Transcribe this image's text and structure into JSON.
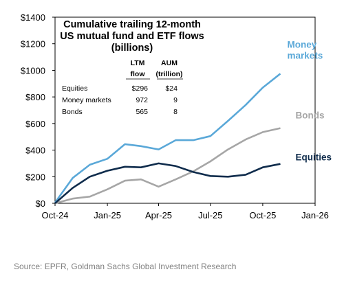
{
  "chart_data": {
    "type": "line",
    "title_lines": [
      "Cumulative trailing 12-month",
      "US  mutual fund and ETF flows",
      "(billions)"
    ],
    "x": [
      "2024-10-01",
      "2024-11-01",
      "2024-12-01",
      "2025-01-01",
      "2025-02-01",
      "2025-03-01",
      "2025-04-01",
      "2025-05-01",
      "2025-06-01",
      "2025-07-01",
      "2025-08-01",
      "2025-09-01",
      "2025-10-01",
      "2025-11-01"
    ],
    "x_ticks": [
      {
        "date": "2024-10-01",
        "label": "Oct-24"
      },
      {
        "date": "2025-01-01",
        "label": "Jan-25"
      },
      {
        "date": "2025-04-01",
        "label": "Apr-25"
      },
      {
        "date": "2025-07-01",
        "label": "Jul-25"
      },
      {
        "date": "2025-10-01",
        "label": "Oct-25"
      },
      {
        "date": "2026-01-01",
        "label": "Jan-26"
      }
    ],
    "xlim": [
      "2024-10-01",
      "2026-01-01"
    ],
    "ylim": [
      0,
      1400
    ],
    "y_ticks": [
      {
        "value": 0,
        "label": "$0"
      },
      {
        "value": 200,
        "label": "$200"
      },
      {
        "value": 400,
        "label": "$400"
      },
      {
        "value": 600,
        "label": "$600"
      },
      {
        "value": 800,
        "label": "$800"
      },
      {
        "value": 1000,
        "label": "$1000"
      },
      {
        "value": 1200,
        "label": "$1200"
      },
      {
        "value": 1400,
        "label": "$1400"
      }
    ],
    "grid": false,
    "series": [
      {
        "name": "Money markets",
        "label_lines": [
          "Money",
          "markets"
        ],
        "color": "#5aa8d8",
        "values": [
          5,
          190,
          290,
          335,
          445,
          430,
          405,
          475,
          475,
          505,
          620,
          740,
          870,
          975
        ]
      },
      {
        "name": "Bonds",
        "label_lines": [
          "Bonds"
        ],
        "color": "#a6a6a6",
        "values": [
          0,
          35,
          50,
          105,
          170,
          180,
          125,
          180,
          240,
          315,
          405,
          480,
          535,
          565
        ]
      },
      {
        "name": "Equities",
        "label_lines": [
          "Equities"
        ],
        "color": "#0f2c4c",
        "values": [
          0,
          115,
          200,
          245,
          275,
          270,
          300,
          280,
          235,
          205,
          200,
          215,
          270,
          296
        ]
      }
    ],
    "table": {
      "header_top": [
        "LTM",
        "AUM"
      ],
      "header_bottom": [
        "flow",
        "(trillion)"
      ],
      "rows": [
        {
          "label": "Equities",
          "flow": "$296",
          "aum": "$24"
        },
        {
          "label": "Money markets",
          "flow": "972",
          "aum": "9"
        },
        {
          "label": "Bonds",
          "flow": "565",
          "aum": "8"
        }
      ]
    }
  },
  "source": "Source: EPFR, Goldman Sachs Global Investment Research"
}
